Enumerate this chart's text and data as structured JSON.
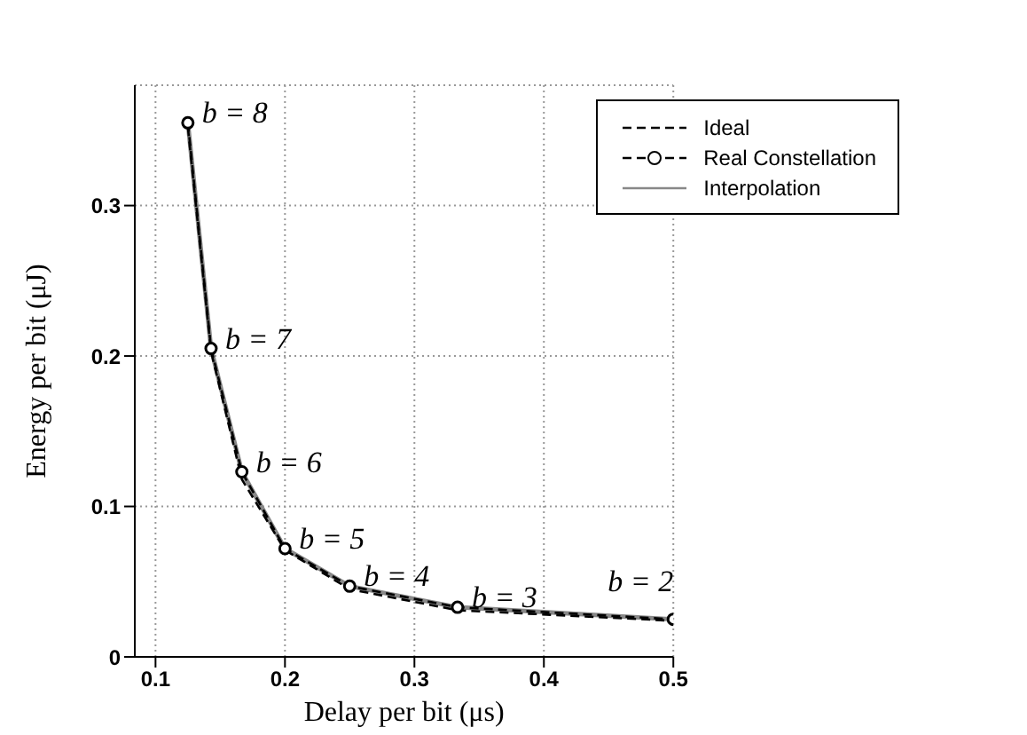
{
  "chart_data": {
    "type": "line",
    "xlabel": "Delay per bit (μs)",
    "ylabel": "Energy per bit (μJ)",
    "x": [
      0.125,
      0.1429,
      0.1667,
      0.2,
      0.25,
      0.3333,
      0.5
    ],
    "series": [
      {
        "name": "Ideal",
        "color": "#000000",
        "line_style": "dashed",
        "marker": "none",
        "values": [
          0.352,
          0.203,
          0.118,
          0.071,
          0.045,
          0.031,
          0.024
        ]
      },
      {
        "name": "Real Constellation",
        "color": "#000000",
        "line_style": "dashed",
        "marker": "circle",
        "values": [
          0.355,
          0.205,
          0.123,
          0.072,
          0.047,
          0.033,
          0.025
        ]
      },
      {
        "name": "Interpolation",
        "color": "#888888",
        "line_style": "solid",
        "marker": "none",
        "values": [
          0.355,
          0.205,
          0.123,
          0.072,
          0.047,
          0.033,
          0.025
        ]
      }
    ],
    "xlim": [
      0.084,
      0.5
    ],
    "xticks": [
      0.1,
      0.2,
      0.3,
      0.4,
      0.5
    ],
    "ylim": [
      0,
      0.38
    ],
    "yticks": [
      0,
      0.1,
      0.2,
      0.3
    ],
    "grid": true,
    "legend": "top right",
    "annotations": [
      {
        "text": "b = 8",
        "x": 0.125,
        "y": 0.355
      },
      {
        "text": "b = 7",
        "x": 0.1429,
        "y": 0.205
      },
      {
        "text": "b = 6",
        "x": 0.1667,
        "y": 0.123
      },
      {
        "text": "b = 5",
        "x": 0.2,
        "y": 0.072
      },
      {
        "text": "b = 4",
        "x": 0.25,
        "y": 0.047
      },
      {
        "text": "b = 3",
        "x": 0.3333,
        "y": 0.033
      },
      {
        "text": "b = 2",
        "x": 0.5,
        "y": 0.025
      }
    ]
  }
}
